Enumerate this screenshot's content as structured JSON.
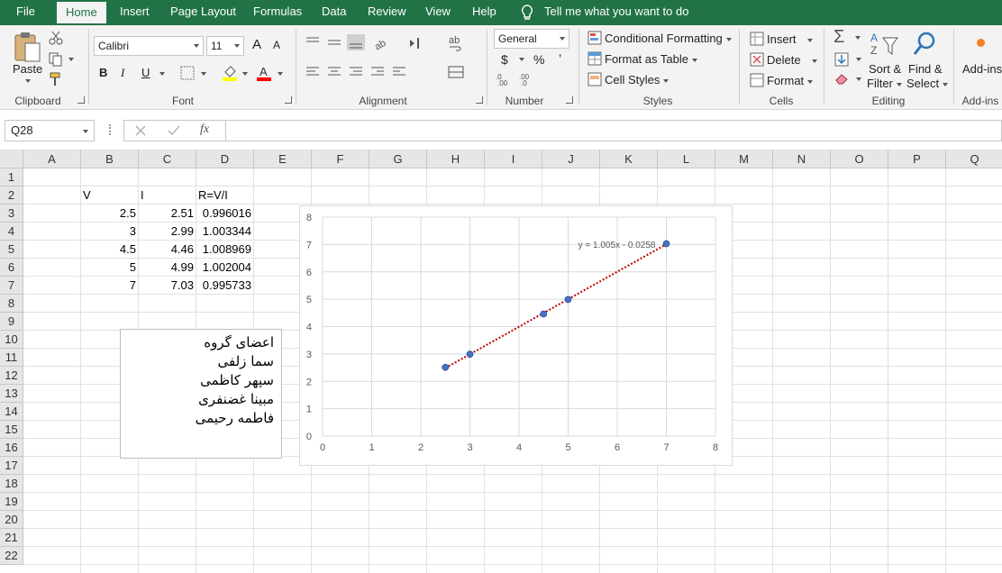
{
  "ribbon_tabs": [
    "File",
    "Home",
    "Insert",
    "Page Layout",
    "Formulas",
    "Data",
    "Review",
    "View",
    "Help"
  ],
  "tell_me": "Tell me what you want to do",
  "clipboard": {
    "paste": "Paste",
    "label": "Clipboard"
  },
  "font": {
    "name": "Calibri",
    "size": "11",
    "bold": "B",
    "italic": "I",
    "underline": "U",
    "grow": "A",
    "shrink": "A",
    "label": "Font",
    "fill_color": "#ffff00",
    "font_color": "#ff0000"
  },
  "alignment": {
    "label": "Alignment"
  },
  "number": {
    "format": "General",
    "currency": "$",
    "percent": "%",
    "comma": "’",
    "label": "Number"
  },
  "styles": {
    "conditional": "Conditional Formatting",
    "format_table": "Format as Table",
    "cell_styles": "Cell Styles",
    "label": "Styles"
  },
  "cells": {
    "insert": "Insert",
    "delete": "Delete",
    "format": "Format",
    "label": "Cells"
  },
  "editing": {
    "sort": "Sort &",
    "sort2": "Filter",
    "find": "Find &",
    "find2": "Select",
    "label": "Editing"
  },
  "addins": {
    "btn": "Add-ins",
    "label": "Add-ins"
  },
  "formula_bar": {
    "name_box": "Q28",
    "fx": "fx",
    "formula": ""
  },
  "columns": [
    "A",
    "B",
    "C",
    "D",
    "E",
    "F",
    "G",
    "H",
    "I",
    "J",
    "K",
    "L",
    "M",
    "N",
    "O",
    "P",
    "Q"
  ],
  "rows": [
    "1",
    "2",
    "3",
    "4",
    "5",
    "6",
    "7",
    "8",
    "9",
    "10",
    "11",
    "12",
    "13",
    "14",
    "15",
    "16",
    "17",
    "18",
    "19",
    "20",
    "21",
    "22"
  ],
  "table": {
    "headers": [
      "V",
      "I",
      "R=V/I"
    ],
    "rows": [
      [
        "2.5",
        "2.51",
        "0.996016"
      ],
      [
        "3",
        "2.99",
        "1.003344"
      ],
      [
        "4.5",
        "4.46",
        "1.008969"
      ],
      [
        "5",
        "4.99",
        "1.002004"
      ],
      [
        "7",
        "7.03",
        "0.995733"
      ]
    ]
  },
  "textbox_lines": [
    "اعضای گروه",
    "سما زلفی",
    "سپهر کاظمی",
    "مبینا غضنفری",
    "فاطمه رحیمی"
  ],
  "colors": {
    "excel_green": "#217346",
    "marker": "#4472c4",
    "trendline": "#c00000"
  },
  "chart_data": {
    "type": "scatter",
    "x": [
      2.5,
      3,
      4.5,
      5,
      7
    ],
    "y": [
      2.51,
      2.99,
      4.46,
      4.99,
      7.03
    ],
    "xlim": [
      0,
      8
    ],
    "ylim": [
      0,
      8
    ],
    "xticks": [
      "0",
      "1",
      "2",
      "3",
      "4",
      "5",
      "6",
      "7",
      "8"
    ],
    "yticks": [
      "0",
      "1",
      "2",
      "3",
      "4",
      "5",
      "6",
      "7",
      "8"
    ],
    "grid": true,
    "trendline": {
      "type": "linear",
      "slope": 1.005,
      "intercept": -0.0258,
      "x_range": [
        2.5,
        7
      ],
      "equation": "y = 1.005x - 0.0258"
    }
  }
}
